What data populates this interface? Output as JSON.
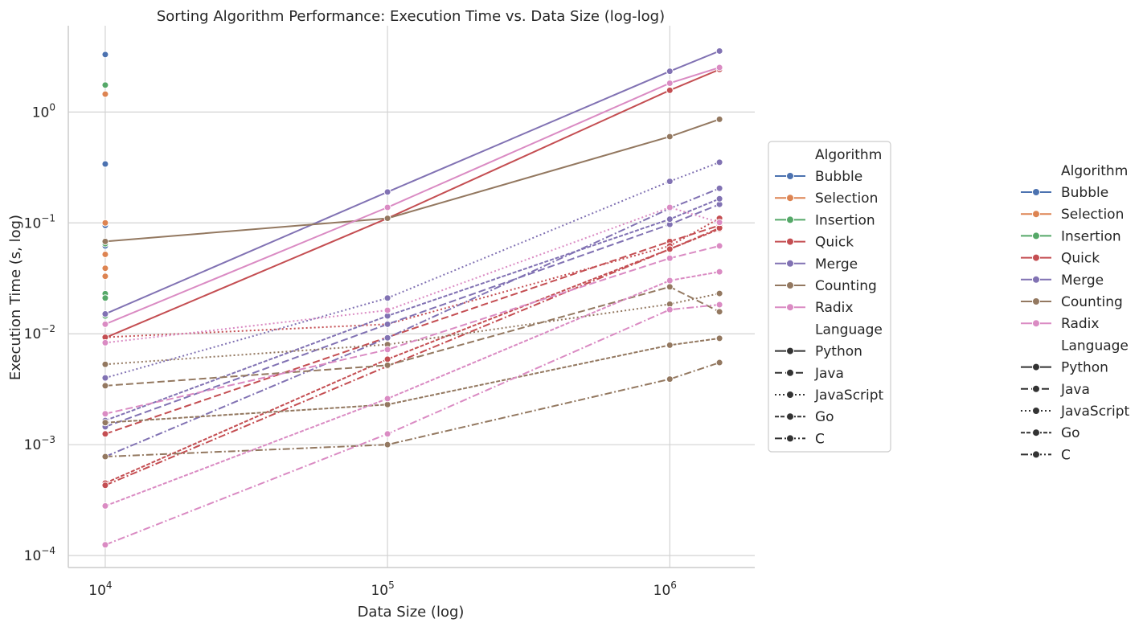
{
  "chart_data": {
    "type": "line",
    "title": "Sorting Algorithm Performance: Execution Time vs. Data Size (log-log)",
    "xlabel": "Data Size (log)",
    "ylabel": "Execution Time (s, log)",
    "x_scale": "log",
    "y_scale": "log",
    "xlim": [
      7400,
      2000000
    ],
    "ylim": [
      7.8e-05,
      6.0
    ],
    "x_ticks": [
      {
        "value": 10000,
        "label": "10",
        "exp": "4"
      },
      {
        "value": 100000,
        "label": "10",
        "exp": "5"
      },
      {
        "value": 1000000,
        "label": "10",
        "exp": "6"
      }
    ],
    "y_ticks": [
      {
        "value": 0.0001,
        "label": "10",
        "exp": "−4"
      },
      {
        "value": 0.001,
        "label": "10",
        "exp": "−3"
      },
      {
        "value": 0.01,
        "label": "10",
        "exp": "−2"
      },
      {
        "value": 0.1,
        "label": "10",
        "exp": "−1"
      },
      {
        "value": 1,
        "label": "10",
        "exp": "0"
      }
    ],
    "grid": true,
    "legend_placement": "right",
    "algorithm_colors": {
      "Bubble": "#4c72b0",
      "Selection": "#dd8452",
      "Insertion": "#55a868",
      "Quick": "#c44e52",
      "Merge": "#8172b3",
      "Counting": "#937860",
      "Radix": "#da8bc3"
    },
    "language_dashes": {
      "Python": "",
      "Java": "9,4",
      "JavaScript": "2,3",
      "Go": "5,2",
      "C": "9,3,2,3"
    },
    "series": [
      {
        "algorithm": "Bubble",
        "language": "Python",
        "x": [
          10000
        ],
        "y": [
          3.3
        ]
      },
      {
        "algorithm": "Bubble",
        "language": "Java",
        "x": [
          10000
        ],
        "y": [
          0.095
        ]
      },
      {
        "algorithm": "Bubble",
        "language": "JavaScript",
        "x": [
          10000
        ],
        "y": [
          0.34
        ]
      },
      {
        "algorithm": "Bubble",
        "language": "Go",
        "x": [
          10000
        ],
        "y": [
          0.095
        ]
      },
      {
        "algorithm": "Bubble",
        "language": "C",
        "x": [
          10000
        ],
        "y": [
          0.062
        ]
      },
      {
        "algorithm": "Selection",
        "language": "Python",
        "x": [
          10000
        ],
        "y": [
          1.45
        ]
      },
      {
        "algorithm": "Selection",
        "language": "Java",
        "x": [
          10000
        ],
        "y": [
          0.052
        ]
      },
      {
        "algorithm": "Selection",
        "language": "JavaScript",
        "x": [
          10000
        ],
        "y": [
          0.1
        ]
      },
      {
        "algorithm": "Selection",
        "language": "Go",
        "x": [
          10000
        ],
        "y": [
          0.039
        ]
      },
      {
        "algorithm": "Selection",
        "language": "C",
        "x": [
          10000
        ],
        "y": [
          0.033
        ]
      },
      {
        "algorithm": "Insertion",
        "language": "Python",
        "x": [
          10000
        ],
        "y": [
          1.75
        ]
      },
      {
        "algorithm": "Insertion",
        "language": "Java",
        "x": [
          10000
        ],
        "y": [
          0.023
        ]
      },
      {
        "algorithm": "Insertion",
        "language": "JavaScript",
        "x": [
          10000
        ],
        "y": [
          0.065
        ]
      },
      {
        "algorithm": "Insertion",
        "language": "Go",
        "x": [
          10000
        ],
        "y": [
          0.021
        ]
      },
      {
        "algorithm": "Insertion",
        "language": "C",
        "x": [
          10000
        ],
        "y": [
          0.0145
        ]
      },
      {
        "algorithm": "Quick",
        "language": "Python",
        "x": [
          10000,
          100000,
          1000000,
          1500000
        ],
        "y": [
          0.0092,
          0.11,
          1.57,
          2.42
        ]
      },
      {
        "algorithm": "Quick",
        "language": "Java",
        "x": [
          10000,
          100000,
          1000000,
          1500000
        ],
        "y": [
          0.00125,
          0.0093,
          0.068,
          0.095
        ]
      },
      {
        "algorithm": "Quick",
        "language": "JavaScript",
        "x": [
          10000,
          100000,
          1000000,
          1500000
        ],
        "y": [
          0.0093,
          0.0122,
          0.062,
          0.11
        ]
      },
      {
        "algorithm": "Quick",
        "language": "Go",
        "x": [
          10000,
          100000,
          1000000,
          1500000
        ],
        "y": [
          0.00045,
          0.0059,
          0.058,
          0.088
        ]
      },
      {
        "algorithm": "Quick",
        "language": "C",
        "x": [
          10000,
          100000,
          1000000,
          1500000
        ],
        "y": [
          0.00043,
          0.0051,
          0.058,
          0.09
        ]
      },
      {
        "algorithm": "Merge",
        "language": "Python",
        "x": [
          10000,
          100000,
          1000000,
          1500000
        ],
        "y": [
          0.0151,
          0.19,
          2.33,
          3.55
        ]
      },
      {
        "algorithm": "Merge",
        "language": "Java",
        "x": [
          10000,
          100000,
          1000000,
          1500000
        ],
        "y": [
          0.00145,
          0.0122,
          0.097,
          0.147
        ]
      },
      {
        "algorithm": "Merge",
        "language": "JavaScript",
        "x": [
          10000,
          100000,
          1000000,
          1500000
        ],
        "y": [
          0.004,
          0.021,
          0.237,
          0.352
        ]
      },
      {
        "algorithm": "Merge",
        "language": "Go",
        "x": [
          10000,
          100000,
          1000000,
          1500000
        ],
        "y": [
          0.00165,
          0.0145,
          0.108,
          0.165
        ]
      },
      {
        "algorithm": "Merge",
        "language": "C",
        "x": [
          10000,
          100000,
          1000000,
          1500000
        ],
        "y": [
          0.00078,
          0.0092,
          0.135,
          0.205
        ]
      },
      {
        "algorithm": "Counting",
        "language": "Python",
        "x": [
          10000,
          100000,
          1000000,
          1500000
        ],
        "y": [
          0.068,
          0.11,
          0.6,
          0.86
        ]
      },
      {
        "algorithm": "Counting",
        "language": "Java",
        "x": [
          10000,
          100000,
          1000000,
          1500000
        ],
        "y": [
          0.0034,
          0.0052,
          0.0265,
          0.0158
        ]
      },
      {
        "algorithm": "Counting",
        "language": "JavaScript",
        "x": [
          10000,
          100000,
          1000000,
          1500000
        ],
        "y": [
          0.0053,
          0.008,
          0.0185,
          0.0231
        ]
      },
      {
        "algorithm": "Counting",
        "language": "Go",
        "x": [
          10000,
          100000,
          1000000,
          1500000
        ],
        "y": [
          0.00158,
          0.0023,
          0.0079,
          0.0091
        ]
      },
      {
        "algorithm": "Counting",
        "language": "C",
        "x": [
          10000,
          100000,
          1000000,
          1500000
        ],
        "y": [
          0.00078,
          0.001,
          0.0039,
          0.0055
        ]
      },
      {
        "algorithm": "Radix",
        "language": "Python",
        "x": [
          10000,
          100000,
          1000000,
          1500000
        ],
        "y": [
          0.0122,
          0.138,
          1.82,
          2.52
        ]
      },
      {
        "algorithm": "Radix",
        "language": "Java",
        "x": [
          10000,
          100000,
          1000000,
          1500000
        ],
        "y": [
          0.0019,
          0.0072,
          0.048,
          0.062
        ]
      },
      {
        "algorithm": "Radix",
        "language": "JavaScript",
        "x": [
          10000,
          100000,
          1000000,
          1500000
        ],
        "y": [
          0.0083,
          0.0163,
          0.138,
          0.101
        ]
      },
      {
        "algorithm": "Radix",
        "language": "Go",
        "x": [
          10000,
          100000,
          1000000,
          1500000
        ],
        "y": [
          0.00028,
          0.0026,
          0.0302,
          0.0362
        ]
      },
      {
        "algorithm": "Radix",
        "language": "C",
        "x": [
          10000,
          100000,
          1000000,
          1500000
        ],
        "y": [
          0.000125,
          0.00125,
          0.0165,
          0.0183
        ]
      }
    ]
  },
  "legends": [
    {
      "algorithm_title": "Algorithm",
      "algorithms": [
        "Bubble",
        "Selection",
        "Insertion",
        "Quick",
        "Merge",
        "Counting",
        "Radix"
      ],
      "language_title": "Language",
      "languages": [
        "Python",
        "Java",
        "JavaScript",
        "Go",
        "C"
      ]
    },
    {
      "algorithm_title": "Algorithm",
      "algorithms": [
        "Bubble",
        "Selection",
        "Insertion",
        "Quick",
        "Merge",
        "Counting",
        "Radix"
      ],
      "language_title": "Language",
      "languages": [
        "Python",
        "Java",
        "JavaScript",
        "Go",
        "C"
      ]
    }
  ]
}
